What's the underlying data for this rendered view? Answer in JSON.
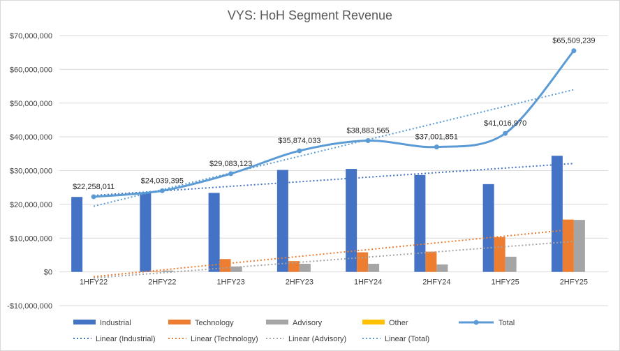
{
  "chart_data": {
    "type": "bar",
    "title": "VYS: HoH Segment Revenue",
    "categories": [
      "1HFY22",
      "2HFY22",
      "1HFY23",
      "2HFY23",
      "1HFY24",
      "2HFY24",
      "1HFY25",
      "2HFY25"
    ],
    "ylim": [
      -10000000,
      70000000
    ],
    "yticks": [
      -10000000,
      0,
      10000000,
      20000000,
      30000000,
      40000000,
      50000000,
      60000000,
      70000000
    ],
    "ytick_labels": [
      "-$10,000,000",
      "$0",
      "$10,000,000",
      "$20,000,000",
      "$30,000,000",
      "$40,000,000",
      "$50,000,000",
      "$60,000,000",
      "$70,000,000"
    ],
    "grid": true,
    "legend_position": "bottom",
    "series": [
      {
        "name": "Industrial",
        "kind": "bar",
        "color": "#4472C4",
        "values": [
          22200000,
          23600000,
          23400000,
          30200000,
          30500000,
          28700000,
          26000000,
          34400000
        ]
      },
      {
        "name": "Technology",
        "kind": "bar",
        "color": "#ED7D31",
        "values": [
          0,
          150000,
          3800000,
          3200000,
          5800000,
          6000000,
          10300000,
          15500000
        ]
      },
      {
        "name": "Advisory",
        "kind": "bar",
        "color": "#A5A5A5",
        "values": [
          0,
          400000,
          1600000,
          2400000,
          2400000,
          2200000,
          4500000,
          15400000
        ]
      },
      {
        "name": "Other",
        "kind": "bar",
        "color": "#FFC000",
        "values": [
          0,
          0,
          0,
          0,
          0,
          0,
          0,
          0
        ]
      },
      {
        "name": "Total",
        "kind": "line",
        "color": "#5B9BD5",
        "values": [
          22258011,
          24039395,
          29083123,
          35874033,
          38883565,
          37001851,
          41016970,
          65509239
        ],
        "labels": [
          "$22,258,011",
          "$24,039,395",
          "$29,083,123",
          "$35,874,033",
          "$38,883,565",
          "$37,001,851",
          "$41,016,970",
          "$65,509,239"
        ]
      }
    ],
    "trendlines": [
      {
        "name": "Linear (Industrial)",
        "of": "Industrial",
        "color": "#4472C4"
      },
      {
        "name": "Linear (Technology)",
        "of": "Technology",
        "color": "#ED7D31"
      },
      {
        "name": "Linear (Advisory)",
        "of": "Advisory",
        "color": "#A5A5A5"
      },
      {
        "name": "Linear (Total)",
        "of": "Total",
        "color": "#5B9BD5"
      }
    ]
  }
}
